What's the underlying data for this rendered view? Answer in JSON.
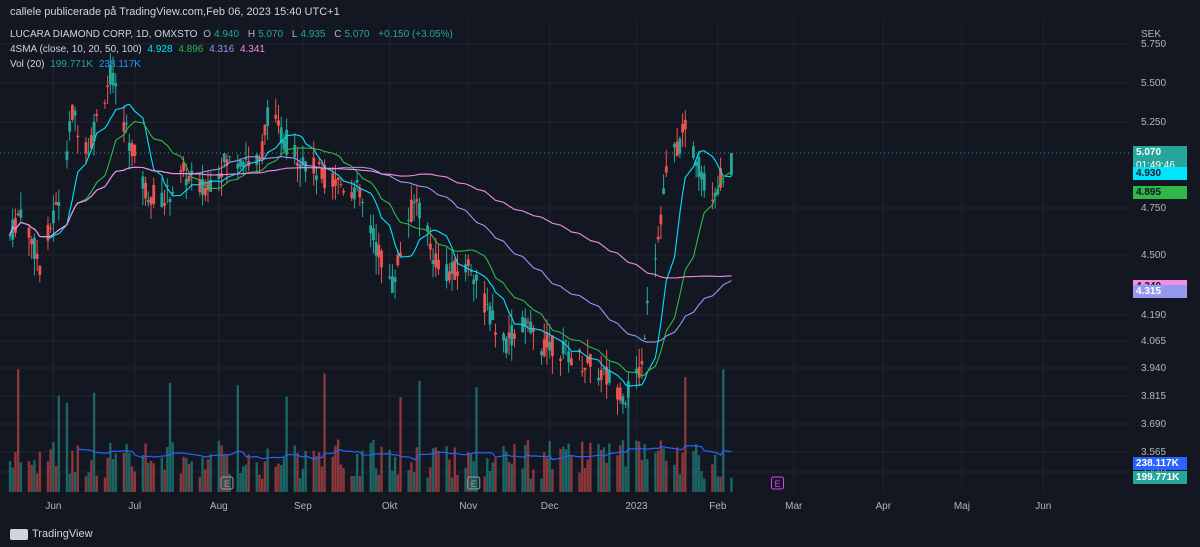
{
  "publisher": "callele publicerade på TradingView.com,Feb 06, 2023 15:40 UTC+1",
  "header": {
    "symbol": "LUCARA DIAMOND CORP, 1D, OMXSTO",
    "o_label": "O",
    "o_value": "4.940",
    "h_label": "H",
    "h_value": "5.070",
    "l_label": "L",
    "l_value": "4.935",
    "c_label": "C",
    "c_value": "5.070",
    "change": "+0.150 (+3.05%)",
    "sma_label": "4SMA (close, 10, 20, 50, 100)",
    "sma_values": [
      "4.928",
      "4.896",
      "4.316",
      "4.341"
    ],
    "vol_label": "Vol (20)",
    "vol_values": [
      "199.771K",
      "238.117K"
    ]
  },
  "axis_unit": "SEK",
  "footer_brand": "TradingView",
  "chart_data": {
    "type": "candlestick",
    "title": "LUCARA DIAMOND CORP, 1D, OMXSTO",
    "y_ticks": [
      "5.750",
      "5.500",
      "5.250",
      "4.750",
      "4.500",
      "4.190",
      "4.065",
      "3.940",
      "3.815",
      "3.690",
      "3.565",
      "3.440"
    ],
    "y_tick_values": [
      5.75,
      5.5,
      5.25,
      4.75,
      4.5,
      4.19,
      4.065,
      3.94,
      3.815,
      3.69,
      3.565,
      3.44
    ],
    "x_ticks": [
      "Jun",
      "Jul",
      "Aug",
      "Sep",
      "Okt",
      "Nov",
      "Dec",
      "2023",
      "Feb",
      "Mar",
      "Apr",
      "Maj",
      "Jun"
    ],
    "x_tick_dates": [
      "2022-06-01",
      "2022-07-01",
      "2022-08-01",
      "2022-09-01",
      "2022-10-03",
      "2022-11-01",
      "2022-12-01",
      "2023-01-02",
      "2023-02-01",
      "2023-03-01",
      "2023-04-03",
      "2023-05-02",
      "2023-06-01"
    ],
    "price_anchors": [
      [
        "2022-05-16",
        4.6
      ],
      [
        "2022-05-20",
        4.75
      ],
      [
        "2022-05-27",
        4.45
      ],
      [
        "2022-06-03",
        4.8
      ],
      [
        "2022-06-08",
        5.3
      ],
      [
        "2022-06-14",
        5.1
      ],
      [
        "2022-06-22",
        5.55
      ],
      [
        "2022-06-28",
        5.2
      ],
      [
        "2022-07-05",
        4.85
      ],
      [
        "2022-07-12",
        4.8
      ],
      [
        "2022-07-19",
        4.95
      ],
      [
        "2022-07-26",
        4.85
      ],
      [
        "2022-08-02",
        5.0
      ],
      [
        "2022-08-09",
        5.05
      ],
      [
        "2022-08-16",
        5.0
      ],
      [
        "2022-08-19",
        5.3
      ],
      [
        "2022-08-25",
        5.15
      ],
      [
        "2022-08-31",
        5.05
      ],
      [
        "2022-09-07",
        4.95
      ],
      [
        "2022-09-14",
        4.9
      ],
      [
        "2022-09-21",
        4.85
      ],
      [
        "2022-09-28",
        4.55
      ],
      [
        "2022-10-04",
        4.35
      ],
      [
        "2022-10-10",
        4.7
      ],
      [
        "2022-10-13",
        4.8
      ],
      [
        "2022-10-19",
        4.5
      ],
      [
        "2022-10-25",
        4.4
      ],
      [
        "2022-11-02",
        4.45
      ],
      [
        "2022-11-07",
        4.25
      ],
      [
        "2022-11-14",
        4.05
      ],
      [
        "2022-11-21",
        4.15
      ],
      [
        "2022-11-28",
        4.05
      ],
      [
        "2022-12-02",
        4.05
      ],
      [
        "2022-12-09",
        4.0
      ],
      [
        "2022-12-16",
        3.95
      ],
      [
        "2022-12-22",
        3.9
      ],
      [
        "2022-12-29",
        3.82
      ],
      [
        "2023-01-04",
        3.95
      ],
      [
        "2023-01-06",
        4.3
      ],
      [
        "2023-01-10",
        4.6
      ],
      [
        "2023-01-13",
        4.95
      ],
      [
        "2023-01-17",
        5.1
      ],
      [
        "2023-01-20",
        5.2
      ],
      [
        "2023-01-24",
        5.05
      ],
      [
        "2023-01-27",
        4.9
      ],
      [
        "2023-01-31",
        4.85
      ],
      [
        "2023-02-03",
        4.95
      ],
      [
        "2023-02-06",
        5.07
      ]
    ],
    "volume_units": "K",
    "last_price": 5.07,
    "labels": [
      {
        "text": "5.070",
        "sub": "01:49:46",
        "value": 5.07,
        "color": "#26a69a"
      },
      {
        "text": "4.930",
        "value": 4.93,
        "color": "#00e5ff"
      },
      {
        "text": "4.895",
        "value": 4.895,
        "color": "#2fb84a"
      },
      {
        "text": "4.340",
        "value": 4.34,
        "color": "#f08ee0"
      },
      {
        "text": "4.315",
        "value": 4.315,
        "color": "#9598f0"
      },
      {
        "text": "238.117K",
        "color": "#2962ff",
        "pane": "volume"
      },
      {
        "text": "199.771K",
        "color": "#26a69a",
        "pane": "volume"
      }
    ],
    "earnings_markers": [
      {
        "date": "2022-08-04",
        "text": "E"
      },
      {
        "date": "2022-11-03",
        "text": "E"
      },
      {
        "date": "2023-02-23",
        "text": "E",
        "upcoming": true
      }
    ],
    "colors": {
      "up": "#26a69a",
      "down": "#ef5350",
      "bg": "#131722",
      "grid": "#1f2430",
      "sma10": "#00e5ff",
      "sma20": "#2fb84a",
      "sma50": "#9598f0",
      "sma100": "#f08ee0",
      "volma": "#2962ff"
    }
  }
}
